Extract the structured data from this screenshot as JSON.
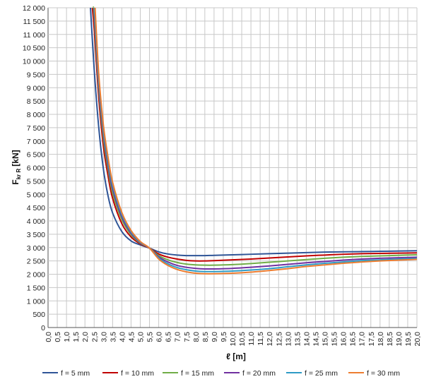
{
  "chart_data": {
    "type": "line",
    "xlabel": "ℓ [m]",
    "ylabel_main": "F",
    "ylabel_sub": "kr R",
    "ylabel_unit": "[kN]",
    "xlim": [
      0,
      20
    ],
    "ylim": [
      0,
      12000
    ],
    "x_step": 0.5,
    "y_step": 500,
    "grid": true,
    "legend_position": "bottom",
    "x_tick_labels": [
      "0,0",
      "0,5",
      "1,0",
      "1,5",
      "2,0",
      "2,5",
      "3,0",
      "3,5",
      "4,0",
      "4,5",
      "5,0",
      "5,5",
      "6,0",
      "6,5",
      "7,0",
      "7,5",
      "8,0",
      "8,5",
      "9,0",
      "9,5",
      "10,0",
      "10,5",
      "11,0",
      "11,5",
      "12,0",
      "12,5",
      "13,0",
      "13,5",
      "14,0",
      "14,5",
      "15,0",
      "15,5",
      "16,0",
      "16,5",
      "17,0",
      "17,5",
      "18,0",
      "18,5",
      "19,0",
      "19,5",
      "20,0"
    ],
    "y_tick_labels": [
      "0",
      "500",
      "1 000",
      "1 500",
      "2 000",
      "2 500",
      "3 000",
      "3 500",
      "4 000",
      "4 500",
      "5 000",
      "5 500",
      "6 000",
      "6 500",
      "7 000",
      "7 500",
      "8 000",
      "8 500",
      "9 000",
      "9 500",
      "10 000",
      "10 500",
      "11 000",
      "11 500",
      "12 000"
    ],
    "series": [
      {
        "name": "f = 5 mm",
        "color": "#2F5597",
        "x": [
          2.3,
          2.5,
          2.75,
          3,
          3.25,
          3.5,
          4,
          4.5,
          5,
          5.5,
          6,
          6.5,
          7,
          7.5,
          8,
          8.5,
          9,
          10,
          11,
          12,
          13,
          14,
          15,
          16,
          17,
          18,
          19,
          20
        ],
        "y": [
          12000,
          9700,
          7500,
          5950,
          4950,
          4300,
          3600,
          3250,
          3100,
          2980,
          2840,
          2760,
          2720,
          2700,
          2700,
          2700,
          2710,
          2730,
          2750,
          2770,
          2790,
          2810,
          2830,
          2840,
          2850,
          2860,
          2870,
          2880
        ]
      },
      {
        "name": "f = 10 mm",
        "color": "#C00000",
        "x": [
          2.4,
          2.5,
          2.75,
          3,
          3.25,
          3.5,
          4,
          4.5,
          5,
          5.5,
          6,
          6.5,
          7,
          7.5,
          8,
          8.5,
          9,
          10,
          11,
          12,
          13,
          14,
          15,
          16,
          17,
          18,
          19,
          20
        ],
        "y": [
          12000,
          11200,
          8600,
          6800,
          5700,
          4850,
          3900,
          3400,
          3140,
          2980,
          2760,
          2640,
          2570,
          2520,
          2500,
          2500,
          2510,
          2540,
          2570,
          2610,
          2650,
          2690,
          2720,
          2750,
          2770,
          2780,
          2790,
          2800
        ]
      },
      {
        "name": "f = 15 mm",
        "color": "#70AD47",
        "x": [
          2.45,
          2.5,
          2.75,
          3,
          3.25,
          3.5,
          4,
          4.5,
          5,
          5.5,
          6,
          6.5,
          7,
          7.5,
          8,
          8.5,
          9,
          10,
          11,
          12,
          13,
          14,
          15,
          16,
          17,
          18,
          19,
          20
        ],
        "y": [
          12000,
          11700,
          8900,
          7100,
          5950,
          5050,
          4050,
          3480,
          3170,
          2980,
          2700,
          2540,
          2440,
          2380,
          2350,
          2340,
          2340,
          2360,
          2400,
          2450,
          2500,
          2550,
          2600,
          2640,
          2670,
          2690,
          2710,
          2730
        ]
      },
      {
        "name": "f = 20 mm",
        "color": "#7030A0",
        "x": [
          2.5,
          2.75,
          3,
          3.25,
          3.5,
          4,
          4.5,
          5,
          5.5,
          6,
          6.5,
          7,
          7.5,
          8,
          8.5,
          9,
          10,
          11,
          12,
          13,
          14,
          15,
          16,
          17,
          18,
          19,
          20
        ],
        "y": [
          12000,
          9100,
          7300,
          6100,
          5200,
          4150,
          3540,
          3190,
          2980,
          2650,
          2460,
          2330,
          2260,
          2220,
          2200,
          2200,
          2220,
          2260,
          2310,
          2370,
          2430,
          2480,
          2530,
          2570,
          2600,
          2620,
          2640
        ]
      },
      {
        "name": "f = 25 mm",
        "color": "#2E9BC6",
        "x": [
          2.52,
          2.75,
          3,
          3.25,
          3.5,
          4,
          4.5,
          5,
          5.5,
          6,
          6.5,
          7,
          7.5,
          8,
          8.5,
          9,
          10,
          11,
          12,
          13,
          14,
          15,
          16,
          17,
          18,
          19,
          20
        ],
        "y": [
          12000,
          9300,
          7450,
          6250,
          5330,
          4240,
          3590,
          3210,
          2980,
          2610,
          2390,
          2250,
          2170,
          2120,
          2100,
          2100,
          2120,
          2160,
          2210,
          2280,
          2350,
          2410,
          2460,
          2510,
          2540,
          2570,
          2590
        ]
      },
      {
        "name": "f = 30 mm",
        "color": "#ED7D31",
        "x": [
          2.55,
          2.75,
          3,
          3.25,
          3.5,
          4,
          4.5,
          5,
          5.5,
          6,
          6.5,
          7,
          7.5,
          8,
          8.5,
          9,
          10,
          11,
          12,
          13,
          14,
          15,
          16,
          17,
          18,
          19,
          20
        ],
        "y": [
          12000,
          9500,
          7600,
          6400,
          5450,
          4320,
          3640,
          3230,
          2980,
          2570,
          2330,
          2180,
          2090,
          2040,
          2020,
          2020,
          2040,
          2080,
          2140,
          2210,
          2290,
          2350,
          2410,
          2460,
          2500,
          2530,
          2560
        ]
      }
    ]
  }
}
